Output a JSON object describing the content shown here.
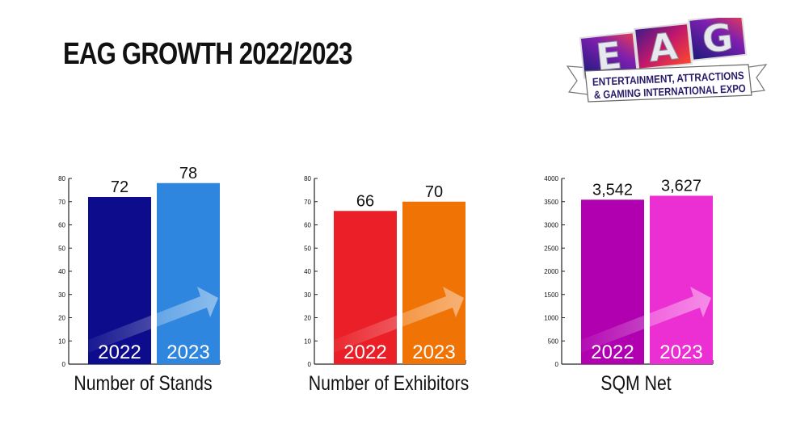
{
  "page": {
    "title": "EAG GROWTH 2022/2023"
  },
  "logo": {
    "letters": [
      "E",
      "A",
      "G"
    ],
    "line1": "ENTERTAINMENT, ATTRACTIONS",
    "line2": "& GAMING INTERNATIONAL EXPO"
  },
  "chart_data": [
    {
      "type": "bar",
      "title": "Number of Stands",
      "categories": [
        "2022",
        "2023"
      ],
      "values": [
        72,
        78
      ],
      "value_labels": [
        "72",
        "78"
      ],
      "colors": [
        "#0c0c8c",
        "#2f86de"
      ],
      "ylim": [
        0,
        80
      ],
      "yticks": [
        0,
        10,
        20,
        30,
        40,
        50,
        60,
        70,
        80
      ],
      "grid": false
    },
    {
      "type": "bar",
      "title": "Number of Exhibitors",
      "categories": [
        "2022",
        "2023"
      ],
      "values": [
        66,
        70
      ],
      "value_labels": [
        "66",
        "70"
      ],
      "colors": [
        "#ea1f27",
        "#f07306"
      ],
      "ylim": [
        0,
        80
      ],
      "yticks": [
        0,
        10,
        20,
        30,
        40,
        50,
        60,
        70,
        80
      ],
      "grid": false
    },
    {
      "type": "bar",
      "title": "SQM Net",
      "categories": [
        "2022",
        "2023"
      ],
      "values": [
        3542,
        3627
      ],
      "value_labels": [
        "3,542",
        "3,627"
      ],
      "colors": [
        "#b000b0",
        "#ec2fd3"
      ],
      "ylim": [
        0,
        4000
      ],
      "yticks": [
        0,
        500,
        1000,
        1500,
        2000,
        2500,
        3000,
        3500,
        4000
      ],
      "grid": false
    }
  ]
}
